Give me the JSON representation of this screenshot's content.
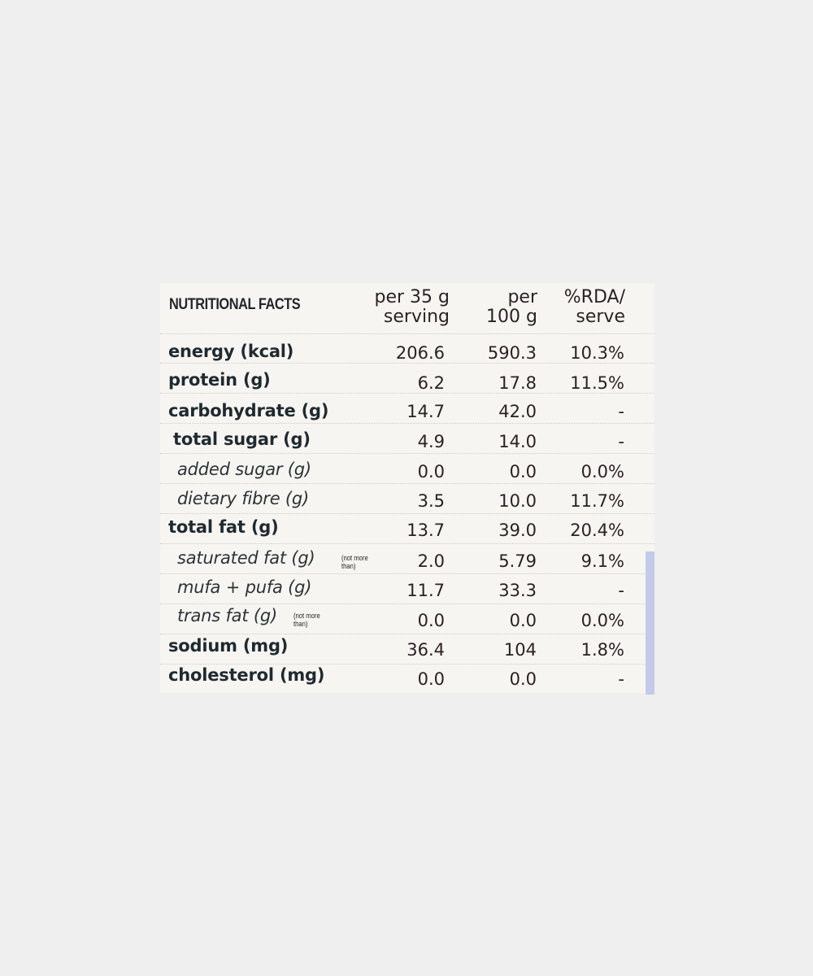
{
  "header": {
    "title": "NUTRITIONAL FACTS",
    "col1_line1": "per 35 g",
    "col1_line2": "serving",
    "col2_line1": "per",
    "col2_line2": "100 g",
    "col3_line1": "%RDA/",
    "col3_line2": "serve"
  },
  "rows": [
    {
      "name": "energy (kcal)",
      "v1": "206.6",
      "v2": "590.3",
      "v3": "10.3%"
    },
    {
      "name": "protein (g)",
      "v1": "6.2",
      "v2": "17.8",
      "v3": "11.5%"
    },
    {
      "name": "carbohydrate (g)",
      "v1": "14.7",
      "v2": "42.0",
      "v3": "-"
    },
    {
      "name": "total sugar (g)",
      "v1": "4.9",
      "v2": "14.0",
      "v3": "-"
    },
    {
      "name": "added sugar (g)",
      "v1": "0.0",
      "v2": "0.0",
      "v3": "0.0%"
    },
    {
      "name": "dietary fibre (g)",
      "v1": "3.5",
      "v2": "10.0",
      "v3": "11.7%"
    },
    {
      "name": "total fat (g)",
      "v1": "13.7",
      "v2": "39.0",
      "v3": "20.4%"
    },
    {
      "name": "saturated fat (g)",
      "note": "(not more than)",
      "v1": "2.0",
      "v2": "5.79",
      "v3": "9.1%"
    },
    {
      "name": "mufa + pufa (g)",
      "v1": "11.7",
      "v2": "33.3",
      "v3": "-"
    },
    {
      "name": "trans fat (g)",
      "note": "(not more than)",
      "v1": "0.0",
      "v2": "0.0",
      "v3": "0.0%"
    },
    {
      "name": "sodium (mg)",
      "v1": "36.4",
      "v2": "104",
      "v3": "1.8%"
    },
    {
      "name": "cholesterol (mg)",
      "v1": "0.0",
      "v2": "0.0",
      "v3": "-"
    }
  ]
}
